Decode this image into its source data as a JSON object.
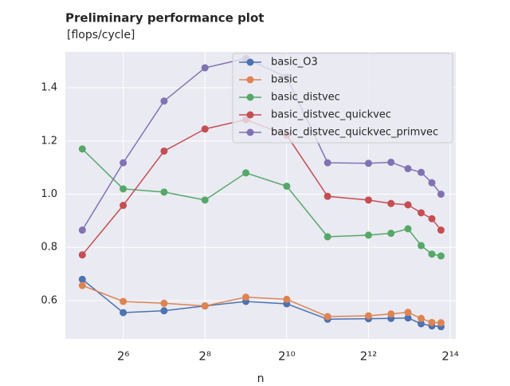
{
  "chart_data": {
    "type": "line",
    "title": "Preliminary performance plot",
    "subtitle": "[flops/cycle]",
    "x_label": "n",
    "x": [
      32,
      64,
      128,
      256,
      512,
      1024,
      2048,
      4096,
      6000,
      8000,
      10000,
      12000,
      14000
    ],
    "series": [
      {
        "name": "basic_O3",
        "color": "#4c72b0",
        "values": [
          0.68,
          0.555,
          0.562,
          0.58,
          0.597,
          0.588,
          0.53,
          0.532,
          0.533,
          0.535,
          0.513,
          0.505,
          0.502
        ]
      },
      {
        "name": "basic",
        "color": "#dd8452",
        "values": [
          0.657,
          0.597,
          0.59,
          0.58,
          0.613,
          0.605,
          0.54,
          0.543,
          0.55,
          0.556,
          0.533,
          0.518,
          0.517
        ]
      },
      {
        "name": "basic_distvec",
        "color": "#55a868",
        "values": [
          1.17,
          1.02,
          1.008,
          0.978,
          1.08,
          1.03,
          0.84,
          0.846,
          0.853,
          0.87,
          0.807,
          0.775,
          0.768
        ]
      },
      {
        "name": "basic_distvec_quickvec",
        "color": "#c44e52",
        "values": [
          0.772,
          0.958,
          1.162,
          1.245,
          1.28,
          1.222,
          0.992,
          0.978,
          0.965,
          0.96,
          0.93,
          0.908,
          0.865
        ]
      },
      {
        "name": "basic_distvec_quickvec_primvec",
        "color": "#8172b3",
        "values": [
          0.865,
          1.118,
          1.35,
          1.475,
          1.51,
          1.44,
          1.118,
          1.116,
          1.12,
          1.096,
          1.082,
          1.043,
          1.0
        ]
      }
    ],
    "xscale": "log2",
    "xlim": [
      24,
      18000
    ],
    "xticks": [
      {
        "value": 64,
        "label": "2⁶"
      },
      {
        "value": 256,
        "label": "2⁸"
      },
      {
        "value": 1024,
        "label": "2¹⁰"
      },
      {
        "value": 4096,
        "label": "2¹²"
      },
      {
        "value": 16384,
        "label": "2¹⁴"
      }
    ],
    "ylim": [
      0.456,
      1.535
    ],
    "yticks": [
      0.6,
      0.8,
      {
        "value": 1.0,
        "label": "1.0"
      },
      1.2,
      1.4
    ],
    "grid": true,
    "legend": "upper right"
  }
}
